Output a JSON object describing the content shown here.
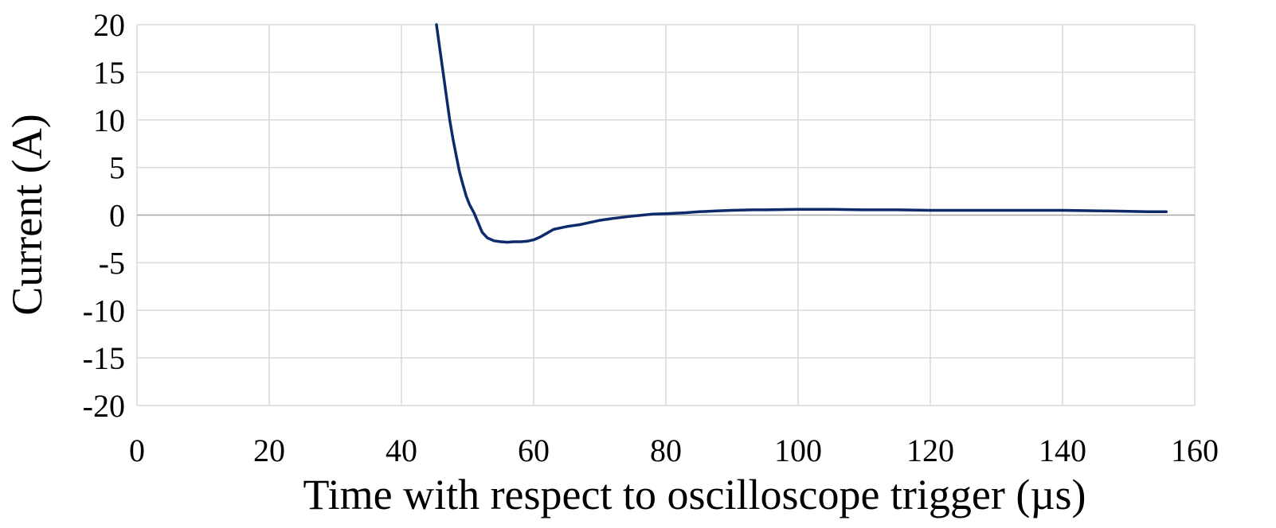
{
  "chart_data": {
    "type": "line",
    "title": "",
    "xlabel": "Time with respect to oscilloscope trigger (µs)",
    "ylabel": "Current (A)",
    "xlim": [
      0,
      160
    ],
    "ylim": [
      -20,
      20
    ],
    "x_ticks": [
      0,
      20,
      40,
      60,
      80,
      100,
      120,
      140,
      160
    ],
    "y_ticks": [
      20,
      15,
      10,
      5,
      0,
      -5,
      -10,
      -15,
      -20
    ],
    "grid": true,
    "legend": "none",
    "series": [
      {
        "color": "#0d2a6b",
        "points": [
          [
            45.3,
            20
          ],
          [
            45.8,
            17.5
          ],
          [
            46.3,
            15
          ],
          [
            46.8,
            12.5
          ],
          [
            47.3,
            10
          ],
          [
            47.8,
            8
          ],
          [
            48.3,
            6.2
          ],
          [
            48.8,
            4.5
          ],
          [
            49.3,
            3.2
          ],
          [
            49.8,
            2
          ],
          [
            50.3,
            1.1
          ],
          [
            51.0,
            0.2
          ],
          [
            51.6,
            -0.8
          ],
          [
            52.2,
            -1.8
          ],
          [
            53.0,
            -2.4
          ],
          [
            54.0,
            -2.7
          ],
          [
            55.0,
            -2.8
          ],
          [
            56.0,
            -2.85
          ],
          [
            57.0,
            -2.8
          ],
          [
            58.0,
            -2.8
          ],
          [
            59.0,
            -2.75
          ],
          [
            60.0,
            -2.6
          ],
          [
            61.0,
            -2.3
          ],
          [
            62.0,
            -1.9
          ],
          [
            63.0,
            -1.5
          ],
          [
            64.0,
            -1.35
          ],
          [
            65.0,
            -1.2
          ],
          [
            66.0,
            -1.1
          ],
          [
            67.0,
            -1.0
          ],
          [
            68.0,
            -0.85
          ],
          [
            70.0,
            -0.55
          ],
          [
            72.0,
            -0.35
          ],
          [
            75.0,
            -0.1
          ],
          [
            78.0,
            0.1
          ],
          [
            80.0,
            0.15
          ],
          [
            83.0,
            0.25
          ],
          [
            85.0,
            0.35
          ],
          [
            88.0,
            0.45
          ],
          [
            90.0,
            0.5
          ],
          [
            93.0,
            0.55
          ],
          [
            95.0,
            0.55
          ],
          [
            100.0,
            0.6
          ],
          [
            105.0,
            0.6
          ],
          [
            110.0,
            0.55
          ],
          [
            115.0,
            0.55
          ],
          [
            120.0,
            0.5
          ],
          [
            125.0,
            0.5
          ],
          [
            130.0,
            0.5
          ],
          [
            135.0,
            0.5
          ],
          [
            140.0,
            0.5
          ],
          [
            145.0,
            0.45
          ],
          [
            150.0,
            0.4
          ],
          [
            153.0,
            0.35
          ],
          [
            155.7,
            0.35
          ]
        ]
      }
    ]
  }
}
